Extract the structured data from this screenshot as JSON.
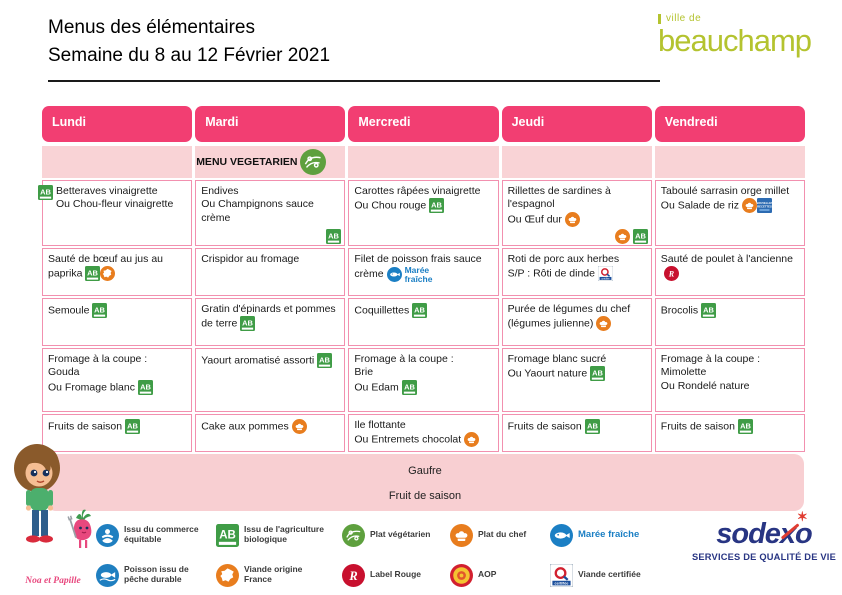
{
  "title": {
    "line1": "Menus des élémentaires",
    "line2": "Semaine du 8 au 12 Février 2021"
  },
  "beauchamp": {
    "top": "ville de",
    "name": "beauchamp"
  },
  "days": [
    "Lundi",
    "Mardi",
    "Mercredi",
    "Jeudi",
    "Vendredi"
  ],
  "veg_banner": {
    "label": "MENU VEGETARIEN",
    "column_index": 1
  },
  "menu": {
    "rows": [
      {
        "cells": [
          {
            "text": "Betteraves vinaigrette\nOu Chou-fleur vinaigrette",
            "icons_left": [
              "bio"
            ]
          },
          {
            "text": "Endives\nOu Champignons sauce crème",
            "icons_bottom": [
              "bio"
            ]
          },
          {
            "text": "Carottes râpées vinaigrette\nOu Chou rouge",
            "icons": [
              "bio"
            ]
          },
          {
            "text": "Rillettes de sardines à l'espagnol\nOu Œuf dur",
            "icons": [
              "chef"
            ],
            "icons_bottom": [
              "chef",
              "bio"
            ]
          },
          {
            "text": "Taboulé sarrasin orge millet\nOu Salade de riz",
            "icons": [
              "chef",
              "nouvelles"
            ]
          }
        ]
      },
      {
        "cells": [
          {
            "text": "Sauté de bœuf au jus au paprika",
            "icons": [
              "bio",
              "viande-france"
            ]
          },
          {
            "text": "Crispidor au fromage"
          },
          {
            "text": "Filet de poisson frais sauce crème",
            "icons": [
              "maree"
            ]
          },
          {
            "text": "Roti de porc aux herbes\nS/P : Rôti de dinde",
            "icons": [
              "viande-certifiee"
            ]
          },
          {
            "text": "Sauté de poulet à l'ancienne",
            "icons": [
              "label-rouge"
            ]
          }
        ]
      },
      {
        "cells": [
          {
            "text": "Semoule",
            "icons": [
              "bio"
            ]
          },
          {
            "text": "Gratin d'épinards et pommes de terre",
            "icons": [
              "bio"
            ]
          },
          {
            "text": "Coquillettes",
            "icons": [
              "bio"
            ]
          },
          {
            "text": "Purée de légumes du chef (légumes julienne)",
            "icons": [
              "chef"
            ]
          },
          {
            "text": "Brocolis",
            "icons": [
              "bio"
            ]
          }
        ]
      },
      {
        "cells": [
          {
            "text": "Fromage à la coupe :\nGouda\nOu Fromage blanc",
            "icons": [
              "bio"
            ]
          },
          {
            "text": "Yaourt aromatisé assorti",
            "icons": [
              "bio"
            ]
          },
          {
            "text": "Fromage à la coupe :\nBrie\nOu Edam",
            "icons": [
              "bio"
            ]
          },
          {
            "text": "Fromage blanc sucré\nOu Yaourt nature",
            "icons": [
              "bio"
            ]
          },
          {
            "text": "Fromage à la coupe :\nMimolette\nOu Rondelé nature"
          }
        ]
      },
      {
        "cells": [
          {
            "text": "Fruits de saison",
            "icons": [
              "bio"
            ]
          },
          {
            "text": "Cake aux pommes",
            "icons": [
              "chef"
            ]
          },
          {
            "text": "Ile flottante\nOu Entremets chocolat",
            "icons": [
              "chef"
            ]
          },
          {
            "text": "Fruits de saison",
            "icons": [
              "bio"
            ]
          },
          {
            "text": "Fruits de saison",
            "icons": [
              "bio"
            ]
          }
        ]
      }
    ]
  },
  "gouter": {
    "line1": "Gaufre",
    "line2": "Fruit de saison"
  },
  "legend": [
    {
      "icon": "fair-trade",
      "label": "Issu du commerce équitable"
    },
    {
      "icon": "fish-durable",
      "label": "Poisson issu de pêche durable"
    },
    {
      "icon": "bio",
      "label": "Issu de l'agriculture biologique"
    },
    {
      "icon": "viande-france",
      "label": "Viande origine France"
    },
    {
      "icon": "veg",
      "label": "Plat végétarien"
    },
    {
      "icon": "label-rouge",
      "label": "Label Rouge"
    },
    {
      "icon": "chef",
      "label": "Plat du chef"
    },
    {
      "icon": "aop",
      "label": "AOP"
    },
    {
      "icon": "maree",
      "label": "Marée fraîche",
      "style": "maree"
    },
    {
      "icon": "viande-certifiee",
      "label": "Viande certifiée"
    }
  ],
  "icons_text": {
    "bio": "AB",
    "maree_line1": "Marée",
    "maree_line2": "fraîche",
    "nouvelles_line1": "NOUVELLES",
    "nouvelles_line2": "RECETTES",
    "certifiee": "certifiée"
  },
  "mascot": {
    "caption": "Noa et Papille"
  },
  "sodexo": {
    "name": "sodexo",
    "tagline": "SERVICES DE QUALITÉ DE VIE"
  },
  "colors": {
    "header_pink": "#F23E72",
    "light_pink_band": "#F9D3D6",
    "gouter_pink": "#F8CFD2",
    "cell_border_pink": "#F290AF",
    "bio_green": "#3F9C46",
    "veg_green": "#5EA03E",
    "chef_orange": "#E87D1E",
    "maree_blue": "#1B7FC4",
    "label_rouge_red": "#C8102E",
    "nouvelles_blue": "#2C6BB2",
    "beauchamp_olive": "#B4C32F",
    "sodexo_navy": "#283583",
    "sodexo_red": "#E03C31",
    "mascot_pink": "#E8487E"
  }
}
